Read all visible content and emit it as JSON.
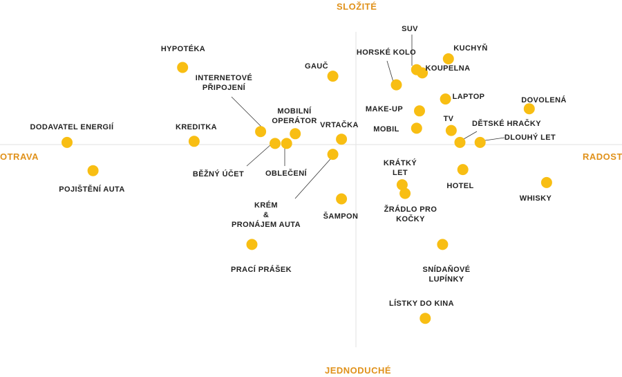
{
  "colors": {
    "dot": "#F8BE13",
    "axis_text": "#E0911A",
    "axis_line": "#e2e2e2",
    "leader": "#333333"
  },
  "axes": {
    "top": "SLOŽITÉ",
    "bottom": "JEDNODUCHÉ",
    "left": "OTRAVA",
    "right": "RADOST"
  },
  "chart_data": {
    "type": "scatter",
    "x_axis": {
      "left": "OTRAVA",
      "right": "RADOST"
    },
    "y_axis": {
      "top": "SLOŽITÉ",
      "bottom": "JEDNODUCHÉ"
    },
    "grid": false,
    "points": [
      {
        "label": "HYPOTÉKA",
        "x": -0.6,
        "y": 0.71
      },
      {
        "label": "GAUČ",
        "x": -0.08,
        "y": 0.63
      },
      {
        "label": "SUV",
        "x": 0.21,
        "y": 0.69
      },
      {
        "label": "KUCHYŇ",
        "x": 0.32,
        "y": 0.79
      },
      {
        "label": "HORSKÉ KOLO",
        "x": 0.14,
        "y": 0.55
      },
      {
        "label": "KOUPELNA",
        "x": 0.23,
        "y": 0.66
      },
      {
        "label": "LAPTOP",
        "x": 0.31,
        "y": 0.42
      },
      {
        "label": "DOVOLENÁ",
        "x": 0.6,
        "y": 0.33
      },
      {
        "label": "MAKE-UP",
        "x": 0.22,
        "y": 0.31
      },
      {
        "label": "MOBIL",
        "x": 0.21,
        "y": 0.15
      },
      {
        "label": "TV",
        "x": 0.33,
        "y": 0.13
      },
      {
        "label": "DĚTSKÉ HRAČKY",
        "x": 0.36,
        "y": 0.02
      },
      {
        "label": "DLOUHÝ LET",
        "x": 0.43,
        "y": 0.02
      },
      {
        "label": "DODAVATEL ENERGIÍ",
        "x": -1.0,
        "y": 0.02
      },
      {
        "label": "KREDITKA",
        "x": -0.56,
        "y": 0.03
      },
      {
        "label": "INTERNETOVÉ PŘIPOJENÍ",
        "x": -0.33,
        "y": 0.12
      },
      {
        "label": "MOBILNÍ OPERÁTOR",
        "x": -0.21,
        "y": 0.1
      },
      {
        "label": "VRTAČKA",
        "x": -0.05,
        "y": 0.05
      },
      {
        "label": "BĚŽNÝ ÚČET",
        "x": -0.28,
        "y": 0.01
      },
      {
        "label": "OBLEČENÍ",
        "x": -0.24,
        "y": 0.01
      },
      {
        "label": "KRÉM & PRONÁJEM AUTA",
        "x": -0.08,
        "y": -0.09
      },
      {
        "label": "POJIŠTĚNÍ AUTA",
        "x": -0.91,
        "y": -0.24
      },
      {
        "label": "KRÁTKÝ LET",
        "x": 0.16,
        "y": -0.37
      },
      {
        "label": "ŽRÁDLO PRO KOČKY",
        "x": 0.17,
        "y": -0.45
      },
      {
        "label": "HOTEL",
        "x": 0.37,
        "y": -0.23
      },
      {
        "label": "WHISKY",
        "x": 0.66,
        "y": -0.35
      },
      {
        "label": "ŠAMPON",
        "x": -0.05,
        "y": -0.5
      },
      {
        "label": "PRACÍ PRÁŠEK",
        "x": -0.36,
        "y": -0.92
      },
      {
        "label": "SNÍDAŇOVÉ LUPÍNKY",
        "x": 0.3,
        "y": -0.92
      },
      {
        "label": "LÍSTKY DO KINA",
        "x": 0.24,
        "y": -1.6
      }
    ]
  }
}
